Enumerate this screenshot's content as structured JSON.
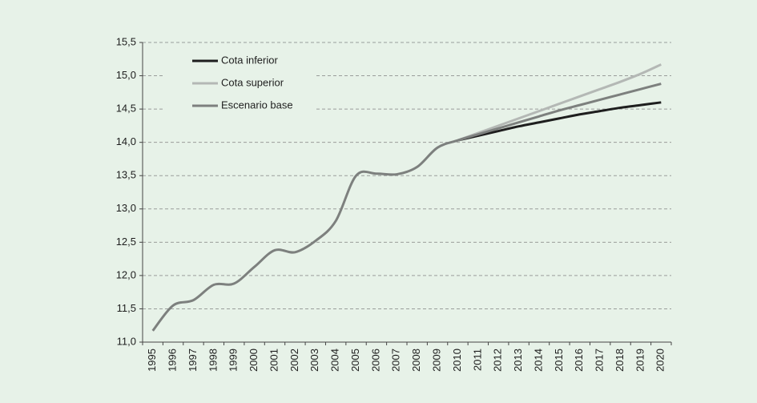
{
  "chart_data": {
    "type": "line",
    "categories": [
      "1995",
      "1996",
      "1997",
      "1998",
      "1999",
      "2000",
      "2001",
      "2002",
      "2003",
      "2004",
      "2005",
      "2006",
      "2007",
      "2008",
      "2009",
      "2010",
      "2011",
      "2012",
      "2013",
      "2014",
      "2015",
      "2016",
      "2017",
      "2018",
      "2019",
      "2020"
    ],
    "series": [
      {
        "name": "Cota inferior",
        "color": "#1e1e1e",
        "values": [
          null,
          null,
          null,
          null,
          null,
          null,
          null,
          null,
          null,
          null,
          null,
          null,
          null,
          null,
          null,
          14.03,
          14.1,
          14.17,
          14.24,
          14.3,
          14.36,
          14.42,
          14.47,
          14.52,
          14.56,
          14.6
        ]
      },
      {
        "name": "Cota superior",
        "color": "#b4b8b5",
        "values": [
          null,
          null,
          null,
          null,
          null,
          null,
          null,
          null,
          null,
          null,
          null,
          null,
          null,
          null,
          null,
          14.03,
          14.14,
          14.25,
          14.36,
          14.47,
          14.58,
          14.69,
          14.8,
          14.91,
          15.03,
          15.17
        ]
      },
      {
        "name": "Escenario base",
        "color": "#7d807e",
        "values": [
          11.17,
          11.55,
          11.63,
          11.86,
          11.88,
          12.13,
          12.38,
          12.35,
          12.52,
          12.82,
          13.5,
          13.53,
          13.52,
          13.63,
          13.92,
          14.03,
          14.12,
          14.21,
          14.3,
          14.39,
          14.48,
          14.56,
          14.64,
          14.72,
          14.8,
          14.88
        ]
      }
    ],
    "ylim": [
      11.0,
      15.5
    ],
    "yticks": [
      {
        "value": 11.0,
        "label": "11,0"
      },
      {
        "value": 11.5,
        "label": "11,5"
      },
      {
        "value": 12.0,
        "label": "12,0"
      },
      {
        "value": 12.5,
        "label": "12,5"
      },
      {
        "value": 13.0,
        "label": "13,0"
      },
      {
        "value": 13.5,
        "label": "13,5"
      },
      {
        "value": 14.0,
        "label": "14,0"
      },
      {
        "value": 14.5,
        "label": "14,5"
      },
      {
        "value": 15.0,
        "label": "15,0"
      },
      {
        "value": 15.5,
        "label": "15,5"
      }
    ],
    "grid": true,
    "legend": "top-left"
  }
}
